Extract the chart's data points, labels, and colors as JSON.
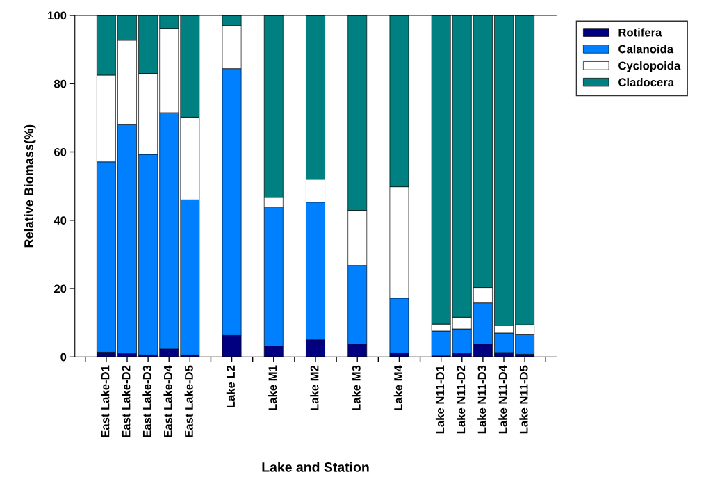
{
  "chart_data": {
    "type": "bar",
    "stacked": true,
    "xlabel": "Lake and Station",
    "ylabel": "Relative Biomass(%)",
    "categories": [
      null,
      "East Lake-D1",
      "East Lake-D2",
      "East Lake-D3",
      "East Lake-D4",
      "East Lake-D5",
      null,
      "Lake L2",
      null,
      "Lake M1",
      null,
      "Lake M2",
      null,
      "Lake M3",
      null,
      "Lake M4",
      null,
      "Lake N11-D1",
      "Lake N11-D2",
      "Lake N11-D3",
      "Lake N11-D4",
      "Lake N11-D5",
      null
    ],
    "series": [
      {
        "name": "Rotifera",
        "color": "#000080",
        "values": [
          null,
          1.4,
          1.0,
          0.6,
          2.3,
          0.6,
          null,
          6.3,
          null,
          3.2,
          null,
          5.0,
          null,
          3.8,
          null,
          1.2,
          null,
          0.3,
          1.0,
          3.8,
          1.3,
          0.8,
          null
        ]
      },
      {
        "name": "Calanoida",
        "color": "#0080ff",
        "values": [
          null,
          55.7,
          67.0,
          58.7,
          69.2,
          45.4,
          null,
          78.1,
          null,
          40.7,
          null,
          40.3,
          null,
          23.0,
          null,
          16.0,
          null,
          7.3,
          7.2,
          12.0,
          5.7,
          5.7,
          null
        ]
      },
      {
        "name": "Cyclopoida",
        "color": "#ffffff",
        "values": [
          null,
          25.4,
          24.7,
          23.7,
          24.7,
          24.2,
          null,
          12.6,
          null,
          2.8,
          null,
          6.7,
          null,
          16.1,
          null,
          32.6,
          null,
          2.0,
          3.4,
          4.5,
          2.2,
          2.9,
          null
        ]
      },
      {
        "name": "Cladocera",
        "color": "#008080",
        "values": [
          null,
          17.5,
          7.3,
          17.0,
          3.8,
          29.8,
          null,
          3.0,
          null,
          53.3,
          null,
          48.0,
          null,
          57.1,
          null,
          50.2,
          null,
          90.4,
          88.4,
          79.7,
          90.8,
          90.6,
          null
        ]
      }
    ],
    "ylim": [
      0,
      100
    ],
    "yticks": [
      0,
      20,
      40,
      60,
      80,
      100
    ],
    "grid": false,
    "legend": "top right"
  }
}
